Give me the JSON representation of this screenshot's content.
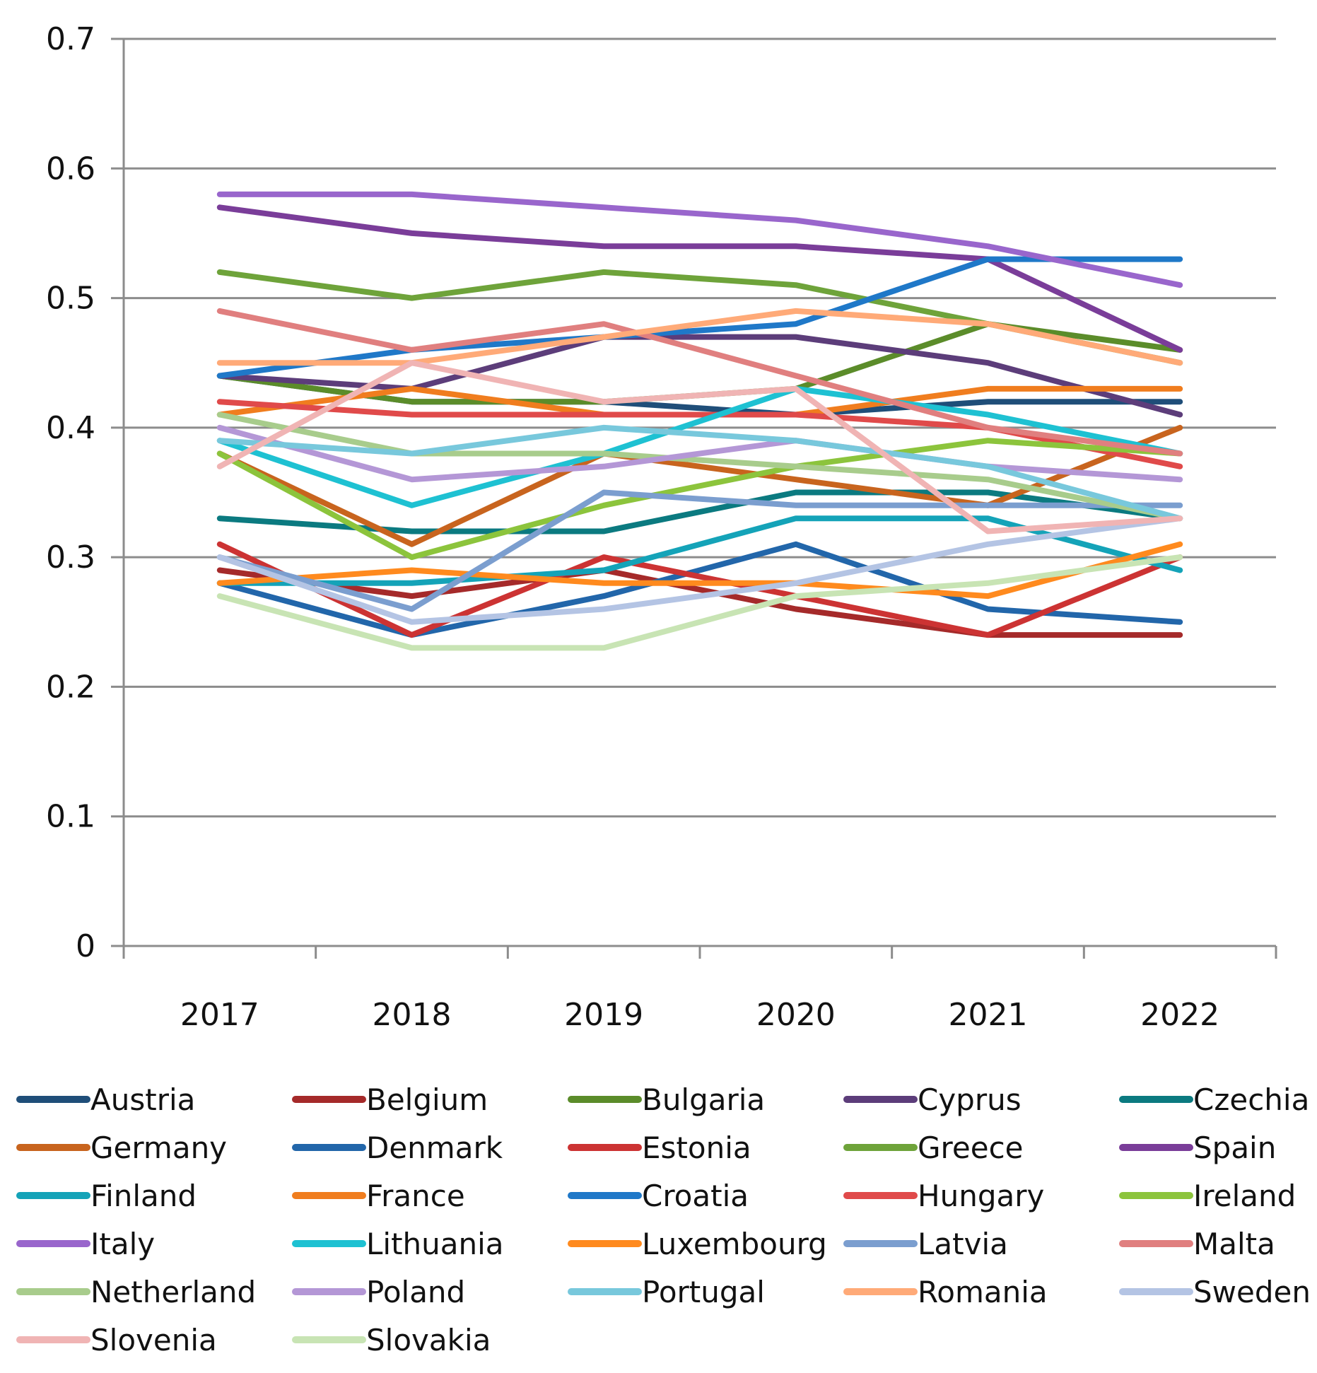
{
  "chart_data": {
    "type": "line",
    "title": "",
    "xlabel": "",
    "ylabel": "",
    "categories": [
      "2017",
      "2018",
      "2019",
      "2020",
      "2021",
      "2022"
    ],
    "ylim": [
      0,
      0.7
    ],
    "yticks": [
      "0",
      "0.1",
      "0.2",
      "0.3",
      "0.4",
      "0.5",
      "0.6",
      "0.7"
    ],
    "grid": true,
    "legend_position": "bottom",
    "series": [
      {
        "name": "Austria",
        "color": "#1f4e79",
        "values": [
          0.44,
          0.42,
          0.42,
          0.41,
          0.42,
          0.42
        ]
      },
      {
        "name": "Belgium",
        "color": "#a52a2a",
        "values": [
          0.29,
          0.27,
          0.29,
          0.26,
          0.24,
          0.24
        ]
      },
      {
        "name": "Bulgaria",
        "color": "#5b8c2a",
        "values": [
          0.44,
          0.42,
          0.42,
          0.43,
          0.48,
          0.46
        ]
      },
      {
        "name": "Cyprus",
        "color": "#5c3d7a",
        "values": [
          0.44,
          0.43,
          0.47,
          0.47,
          0.45,
          0.41
        ]
      },
      {
        "name": "Czechia",
        "color": "#0b7a80",
        "values": [
          0.33,
          0.32,
          0.32,
          0.35,
          0.35,
          0.33
        ]
      },
      {
        "name": "Germany",
        "color": "#c8641e",
        "values": [
          0.38,
          0.31,
          0.38,
          0.36,
          0.34,
          0.4
        ]
      },
      {
        "name": "Denmark",
        "color": "#2266aa",
        "values": [
          0.28,
          0.24,
          0.27,
          0.31,
          0.26,
          0.25
        ]
      },
      {
        "name": "Estonia",
        "color": "#cc3333",
        "values": [
          0.31,
          0.24,
          0.3,
          0.27,
          0.24,
          0.3
        ]
      },
      {
        "name": "Greece",
        "color": "#6ea33a",
        "values": [
          0.52,
          0.5,
          0.52,
          0.51,
          0.48,
          0.45
        ]
      },
      {
        "name": "Spain",
        "color": "#7a3d99",
        "values": [
          0.57,
          0.55,
          0.54,
          0.54,
          0.53,
          0.46
        ]
      },
      {
        "name": "Finland",
        "color": "#14a3b8",
        "values": [
          0.28,
          0.28,
          0.29,
          0.33,
          0.33,
          0.29
        ]
      },
      {
        "name": "France",
        "color": "#f07d1e",
        "values": [
          0.41,
          0.43,
          0.41,
          0.41,
          0.43,
          0.43
        ]
      },
      {
        "name": "Croatia",
        "color": "#1f78c8",
        "values": [
          0.44,
          0.46,
          0.47,
          0.48,
          0.53,
          0.53
        ]
      },
      {
        "name": "Hungary",
        "color": "#e04a4a",
        "values": [
          0.42,
          0.41,
          0.41,
          0.41,
          0.4,
          0.37
        ]
      },
      {
        "name": "Ireland",
        "color": "#8cc43c",
        "values": [
          0.38,
          0.3,
          0.34,
          0.37,
          0.39,
          0.38
        ]
      },
      {
        "name": "Italy",
        "color": "#9966cc",
        "values": [
          0.58,
          0.58,
          0.57,
          0.56,
          0.54,
          0.51
        ]
      },
      {
        "name": "Lithuania",
        "color": "#1ec1d2",
        "values": [
          0.39,
          0.34,
          0.38,
          0.43,
          0.41,
          0.38
        ]
      },
      {
        "name": "Luxembourg",
        "color": "#ff8a1e",
        "values": [
          0.28,
          0.29,
          0.28,
          0.28,
          0.27,
          0.31
        ]
      },
      {
        "name": "Latvia",
        "color": "#7b9ecf",
        "values": [
          0.3,
          0.26,
          0.35,
          0.34,
          0.34,
          0.34
        ]
      },
      {
        "name": "Malta",
        "color": "#e07f7f",
        "values": [
          0.49,
          0.46,
          0.48,
          0.44,
          0.4,
          0.38
        ]
      },
      {
        "name": "Netherland",
        "color": "#a8cc8c",
        "values": [
          0.41,
          0.38,
          0.38,
          0.37,
          0.36,
          0.33
        ]
      },
      {
        "name": "Poland",
        "color": "#b497d6",
        "values": [
          0.4,
          0.36,
          0.37,
          0.39,
          0.37,
          0.36
        ]
      },
      {
        "name": "Portugal",
        "color": "#78c8dc",
        "values": [
          0.39,
          0.38,
          0.4,
          0.39,
          0.37,
          0.33
        ]
      },
      {
        "name": "Romania",
        "color": "#ffaa78",
        "values": [
          0.45,
          0.45,
          0.47,
          0.49,
          0.48,
          0.45
        ]
      },
      {
        "name": "Sweden",
        "color": "#b4c4e4",
        "values": [
          0.3,
          0.25,
          0.26,
          0.28,
          0.31,
          0.33
        ]
      },
      {
        "name": "Slovenia",
        "color": "#f0b4b4",
        "values": [
          0.37,
          0.45,
          0.42,
          0.43,
          0.32,
          0.33
        ]
      },
      {
        "name": "Slovakia",
        "color": "#c8e4b4",
        "values": [
          0.27,
          0.23,
          0.23,
          0.27,
          0.28,
          0.3
        ]
      }
    ]
  }
}
